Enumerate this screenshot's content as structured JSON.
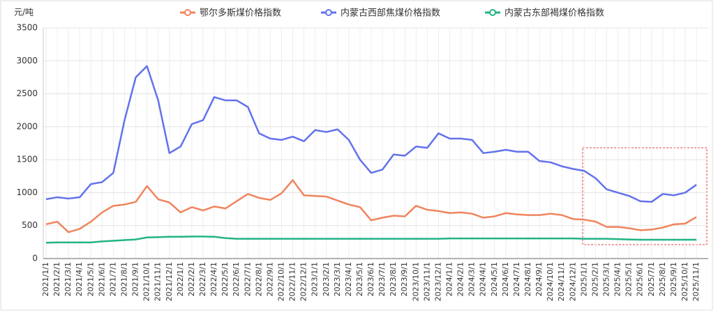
{
  "chart_data": {
    "type": "line",
    "y_label": "元/吨",
    "legend": "top",
    "grid": true,
    "ylim": [
      0,
      3500
    ],
    "yticks": [
      0,
      500,
      1000,
      1500,
      2000,
      2500,
      3000,
      3500
    ],
    "categories": [
      "2021/1/1",
      "2021/2/1",
      "2021/3/1",
      "2021/4/1",
      "2021/5/1",
      "2021/6/1",
      "2021/7/1",
      "2021/8/1",
      "2021/9/1",
      "2021/10/1",
      "2021/11/1",
      "2021/12/1",
      "2022/1/1",
      "2022/2/1",
      "2022/3/1",
      "2022/4/1",
      "2022/5/1",
      "2022/6/1",
      "2022/7/1",
      "2022/8/1",
      "2022/9/1",
      "2022/10/1",
      "2022/11/1",
      "2022/12/1",
      "2023/1/1",
      "2023/2/1",
      "2023/3/1",
      "2023/4/1",
      "2023/5/1",
      "2023/6/1",
      "2023/7/1",
      "2023/8/1",
      "2023/9/1",
      "2023/10/1",
      "2023/11/1",
      "2023/12/1",
      "2024/1/1",
      "2024/2/1",
      "2024/3/1",
      "2024/4/1",
      "2024/5/1",
      "2024/6/1",
      "2024/7/1",
      "2024/8/1",
      "2024/9/1",
      "2024/10/1",
      "2024/11/1",
      "2024/12/1",
      "2025/1/1",
      "2025/2/1",
      "2025/3/1",
      "2025/4/1",
      "2025/5/1",
      "2025/6/1",
      "2025/7/1",
      "2025/8/1",
      "2025/9/1",
      "2025/10/1",
      "2025/11/1"
    ],
    "series": [
      {
        "name": "鄂尔多斯煤价格指数",
        "color": "#f0845e",
        "values": [
          520,
          560,
          400,
          450,
          560,
          700,
          800,
          820,
          860,
          1100,
          900,
          850,
          700,
          780,
          730,
          790,
          760,
          870,
          980,
          920,
          890,
          990,
          1190,
          960,
          950,
          940,
          880,
          820,
          780,
          580,
          620,
          650,
          640,
          800,
          740,
          720,
          690,
          700,
          680,
          620,
          640,
          690,
          670,
          660,
          660,
          680,
          660,
          600,
          590,
          560,
          480,
          480,
          460,
          430,
          440,
          470,
          520,
          530,
          630
        ]
      },
      {
        "name": "内蒙古西部焦煤价格指数",
        "color": "#6272ec",
        "values": [
          900,
          930,
          910,
          930,
          1130,
          1160,
          1300,
          2100,
          2750,
          2920,
          2400,
          1600,
          1700,
          2040,
          2100,
          2450,
          2400,
          2400,
          2300,
          1900,
          1820,
          1800,
          1850,
          1780,
          1950,
          1920,
          1960,
          1800,
          1500,
          1300,
          1350,
          1580,
          1560,
          1700,
          1680,
          1900,
          1820,
          1820,
          1800,
          1600,
          1620,
          1650,
          1620,
          1620,
          1480,
          1460,
          1400,
          1360,
          1330,
          1220,
          1050,
          1000,
          950,
          870,
          860,
          980,
          960,
          1000,
          1120
        ]
      },
      {
        "name": "内蒙古东部褐煤价格指数",
        "color": "#22b386",
        "values": [
          240,
          245,
          245,
          245,
          245,
          260,
          270,
          280,
          290,
          320,
          325,
          330,
          330,
          335,
          335,
          330,
          310,
          300,
          300,
          300,
          300,
          300,
          300,
          300,
          300,
          300,
          300,
          300,
          300,
          300,
          300,
          300,
          300,
          300,
          300,
          300,
          305,
          305,
          305,
          305,
          305,
          305,
          305,
          305,
          305,
          305,
          305,
          305,
          300,
          300,
          300,
          295,
          290,
          285,
          285,
          285,
          285,
          285,
          285
        ]
      }
    ]
  }
}
